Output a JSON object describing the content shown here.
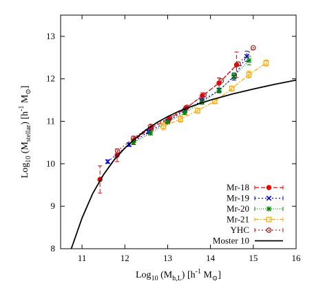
{
  "chart_data": {
    "type": "line",
    "title": "",
    "xlabel": {
      "prefix": "Log",
      "sub1": "10",
      "mid": " (M",
      "sub2": "h,L",
      "mid2": ") [h",
      "sup": "-1",
      "mid3": " M",
      "sub3": "⊙",
      "suffix": "]"
    },
    "ylabel": {
      "prefix": "Log",
      "sub1": "10",
      "mid": " (M",
      "sub2": "stellar",
      "mid2": ") [h",
      "sup": "-1",
      "mid3": " M",
      "sub3": "⊙",
      "suffix": "]"
    },
    "xlim": [
      10.5,
      16
    ],
    "ylim": [
      8,
      13.5
    ],
    "xticks": [
      "11",
      "12",
      "13",
      "14",
      "15",
      "16"
    ],
    "yticks": [
      "8",
      "9",
      "10",
      "11",
      "12",
      "13"
    ],
    "grid": false,
    "legend_position": "bottom-right",
    "series": [
      {
        "name": "Mr-18",
        "color": "#ee0000",
        "dash": "6,3",
        "marker": "circle-filled",
        "x": [
          11.42,
          11.82,
          12.21,
          12.62,
          13.03,
          13.42,
          13.81,
          14.2,
          14.61
        ],
        "y": [
          9.63,
          10.2,
          10.55,
          10.85,
          11.05,
          11.3,
          11.6,
          11.9,
          12.33
        ],
        "yerr": [
          0.32,
          0.15,
          0.1,
          0.07,
          0.06,
          0.06,
          0.07,
          0.12,
          0.3
        ]
      },
      {
        "name": "Mr-19",
        "color": "#0000dd",
        "dash": "2,3",
        "marker": "x",
        "x": [
          11.6,
          12.1,
          12.55,
          13.0,
          13.4,
          13.8,
          14.2,
          14.55,
          14.85
        ],
        "y": [
          10.05,
          10.45,
          10.75,
          11.0,
          11.25,
          11.48,
          11.73,
          12.05,
          12.53
        ],
        "yerr": [
          0.04,
          0.04,
          0.04,
          0.04,
          0.04,
          0.05,
          0.05,
          0.08,
          0.12
        ]
      },
      {
        "name": "Mr-20",
        "color": "#008800",
        "dash": "1,2",
        "marker": "star",
        "x": [
          12.2,
          12.6,
          13.0,
          13.4,
          13.8,
          14.2,
          14.55,
          14.9
        ],
        "y": [
          10.5,
          10.72,
          10.98,
          11.2,
          11.45,
          11.72,
          12.07,
          12.43
        ],
        "yerr": [
          0.04,
          0.04,
          0.04,
          0.04,
          0.05,
          0.05,
          0.07,
          0.1
        ]
      },
      {
        "name": "Mr-21",
        "color": "#ffaa00",
        "dash": "6,2,2,2",
        "marker": "square-open",
        "x": [
          12.9,
          13.3,
          13.7,
          14.1,
          14.5,
          14.9,
          15.3
        ],
        "y": [
          10.88,
          11.05,
          11.25,
          11.47,
          11.77,
          12.1,
          12.37
        ],
        "yerr": [
          0.08,
          0.07,
          0.06,
          0.06,
          0.06,
          0.08,
          0.07
        ]
      },
      {
        "name": "YHC",
        "color": "#aa2222",
        "dash": "2,3",
        "marker": "circle-open",
        "x": [
          11.83,
          12.2,
          12.6,
          13.05,
          13.45,
          13.85,
          14.25,
          14.65,
          15.0
        ],
        "y": [
          10.3,
          10.6,
          10.88,
          11.08,
          11.33,
          11.62,
          11.95,
          12.35,
          12.73
        ],
        "yerr": [
          0.0,
          0.0,
          0.0,
          0.0,
          0.0,
          0.0,
          0.0,
          0.0,
          0.0
        ]
      },
      {
        "name": "Moster 10",
        "color": "#000000",
        "dash": "",
        "marker": "none",
        "x": [
          10.75,
          11.0,
          11.25,
          11.5,
          11.75,
          12.0,
          12.25,
          12.5,
          12.75,
          13.0,
          13.25,
          13.5,
          13.75,
          14.0,
          14.5,
          15.0,
          15.5,
          16.0
        ],
        "y": [
          8.0,
          8.72,
          9.3,
          9.74,
          10.09,
          10.37,
          10.6,
          10.8,
          10.97,
          11.11,
          11.23,
          11.33,
          11.42,
          11.5,
          11.64,
          11.76,
          11.87,
          11.97
        ],
        "yerr": []
      }
    ]
  }
}
